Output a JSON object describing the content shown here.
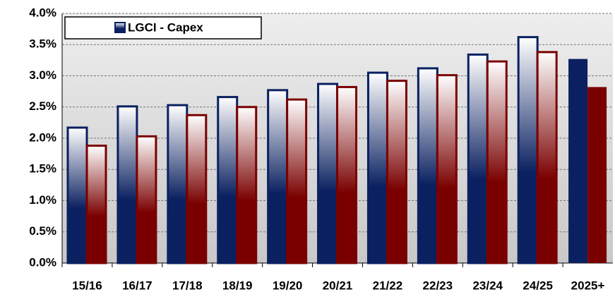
{
  "chart_data": {
    "type": "bar",
    "categories": [
      "15/16",
      "16/17",
      "17/18",
      "18/19",
      "19/20",
      "20/21",
      "21/22",
      "22/23",
      "23/24",
      "24/25",
      "2025+"
    ],
    "series": [
      {
        "name": "LGCI - Capex",
        "color": "#0a2060",
        "values": [
          2.17,
          2.51,
          2.53,
          2.66,
          2.77,
          2.87,
          3.05,
          3.12,
          3.34,
          3.62,
          3.27
        ]
      },
      {
        "color": "#7a0000",
        "values": [
          1.88,
          2.03,
          2.37,
          2.5,
          2.62,
          2.82,
          2.92,
          3.01,
          3.23,
          3.38,
          2.82
        ]
      }
    ],
    "ylim": [
      0,
      4
    ],
    "yticks": [
      {
        "value": 0,
        "label": "0.0%"
      },
      {
        "value": 0.5,
        "label": "0.5%"
      },
      {
        "value": 1,
        "label": "1.0%"
      },
      {
        "value": 1.5,
        "label": "1.5%"
      },
      {
        "value": 2,
        "label": "2.0%"
      },
      {
        "value": 2.5,
        "label": "2.5%"
      },
      {
        "value": 3,
        "label": "3.0%"
      },
      {
        "value": 3.5,
        "label": "3.5%"
      },
      {
        "value": 4,
        "label": "4.0%"
      }
    ],
    "grid": true,
    "gradient": true,
    "solid_from_index": 10,
    "legend": "top-left"
  }
}
